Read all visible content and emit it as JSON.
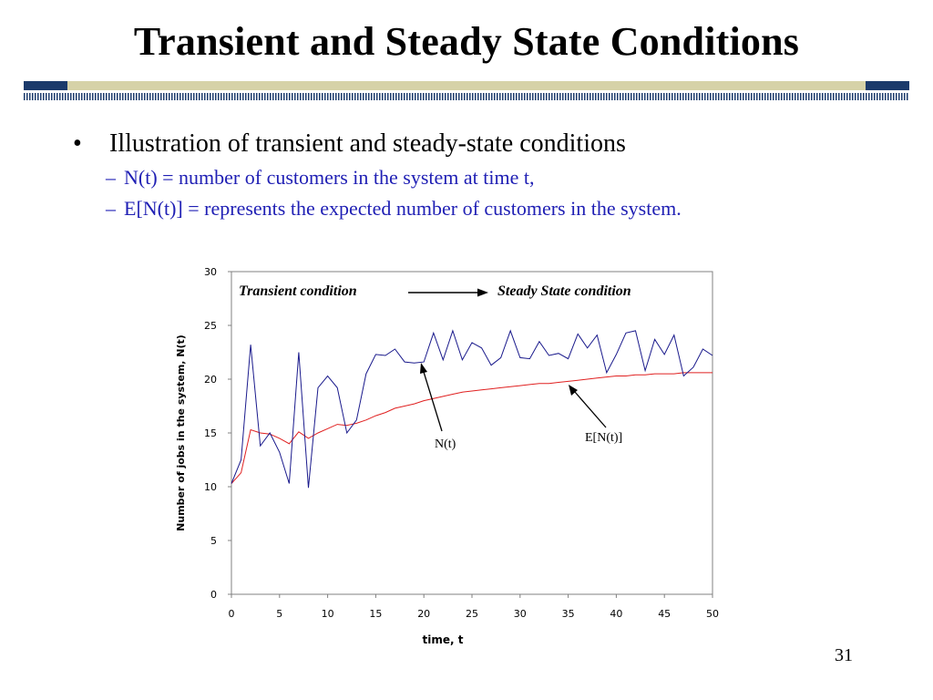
{
  "slide": {
    "title": "Transient and Steady State Conditions",
    "page_number": "31",
    "bullet_main": "Illustration of transient and steady-state conditions",
    "sub_bullets": [
      "N(t) = number of customers in the system at time t,",
      "E[N(t)] = represents the expected number of customers in the system."
    ],
    "colors": {
      "bar_navy": "#1b3a6b",
      "bar_tan": "#d6d2a8",
      "text_blue": "#1f1fb4"
    }
  },
  "chart_data": {
    "type": "line",
    "xlabel": "time, t",
    "ylabel": "Number of jobs in the system, N(t)",
    "xlim": [
      0,
      50
    ],
    "ylim": [
      0,
      30
    ],
    "xticks": [
      0,
      5,
      10,
      15,
      20,
      25,
      30,
      35,
      40,
      45,
      50
    ],
    "yticks": [
      0,
      5,
      10,
      15,
      20,
      25,
      30
    ],
    "grid": false,
    "annotations": {
      "transient": "Transient condition",
      "steady": "Steady State condition",
      "nt_label": "N(t)",
      "ent_label": "E[N(t)]"
    },
    "series": [
      {
        "name": "N(t)",
        "color": "#1a1a8c",
        "x": [
          0,
          1,
          2,
          3,
          4,
          5,
          6,
          7,
          8,
          9,
          10,
          11,
          12,
          13,
          14,
          15,
          16,
          17,
          18,
          19,
          20,
          21,
          22,
          23,
          24,
          25,
          26,
          27,
          28,
          29,
          30,
          31,
          32,
          33,
          34,
          35,
          36,
          37,
          38,
          39,
          40,
          41,
          42,
          43,
          44,
          45,
          46,
          47,
          48,
          49,
          50
        ],
        "y": [
          10.3,
          12.5,
          23.2,
          13.8,
          15.0,
          13.2,
          10.3,
          22.5,
          9.9,
          19.2,
          20.3,
          19.2,
          15.0,
          16.2,
          20.5,
          22.3,
          22.2,
          22.8,
          21.6,
          21.5,
          21.6,
          24.3,
          21.8,
          24.5,
          21.8,
          23.4,
          22.9,
          21.3,
          22.0,
          24.5,
          22.0,
          21.9,
          23.5,
          22.2,
          22.4,
          21.9,
          24.2,
          22.9,
          24.1,
          20.6,
          22.3,
          24.3,
          24.5,
          20.8,
          23.7,
          22.3,
          24.1,
          20.3,
          21.1,
          22.8,
          22.2
        ]
      },
      {
        "name": "E[N(t)]",
        "color": "#e02020",
        "x": [
          0,
          1,
          2,
          3,
          4,
          5,
          6,
          7,
          8,
          9,
          10,
          11,
          12,
          13,
          14,
          15,
          16,
          17,
          18,
          19,
          20,
          21,
          22,
          23,
          24,
          25,
          26,
          27,
          28,
          29,
          30,
          31,
          32,
          33,
          34,
          35,
          36,
          37,
          38,
          39,
          40,
          41,
          42,
          43,
          44,
          45,
          46,
          47,
          48,
          49,
          50
        ],
        "y": [
          10.3,
          11.3,
          15.3,
          15.0,
          14.9,
          14.5,
          14.0,
          15.1,
          14.5,
          15.0,
          15.4,
          15.8,
          15.7,
          15.9,
          16.2,
          16.6,
          16.9,
          17.3,
          17.5,
          17.7,
          18.0,
          18.2,
          18.4,
          18.6,
          18.8,
          18.9,
          19.0,
          19.1,
          19.2,
          19.3,
          19.4,
          19.5,
          19.6,
          19.6,
          19.7,
          19.8,
          19.9,
          20.0,
          20.1,
          20.2,
          20.3,
          20.3,
          20.4,
          20.4,
          20.5,
          20.5,
          20.5,
          20.6,
          20.6,
          20.6,
          20.6
        ]
      }
    ]
  }
}
